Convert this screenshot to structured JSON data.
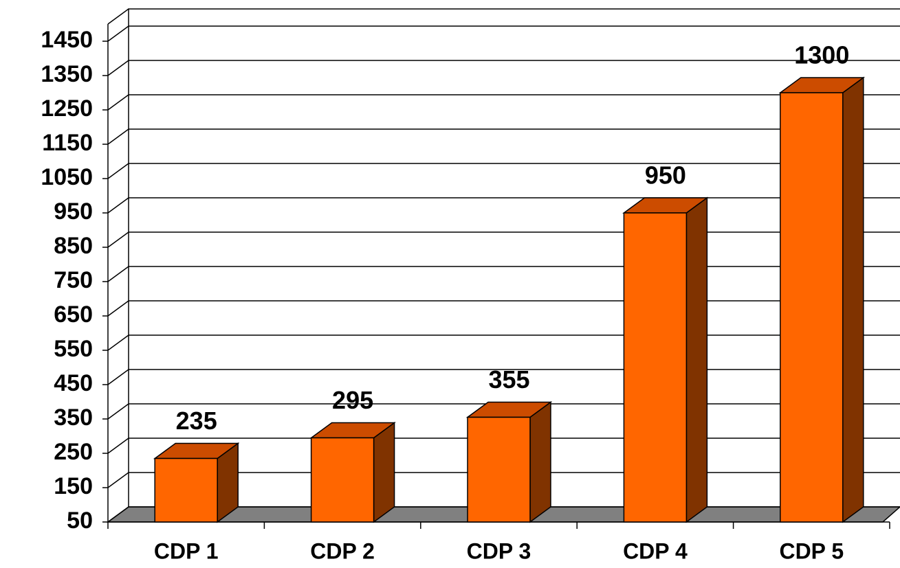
{
  "chart_data": {
    "type": "bar3d",
    "categories": [
      "CDP 1",
      "CDP 2",
      "CDP 3",
      "CDP 4",
      "CDP 5"
    ],
    "values": [
      235,
      295,
      355,
      950,
      1300
    ],
    "color": "#ff6600",
    "top_color": "#cc4c00",
    "side_color": "#803300",
    "floor_color": "#808080",
    "ylim": [
      50,
      1500
    ],
    "yticks": [
      50,
      150,
      250,
      350,
      450,
      550,
      650,
      750,
      850,
      950,
      1050,
      1150,
      1250,
      1350,
      1450
    ],
    "grid": true
  }
}
